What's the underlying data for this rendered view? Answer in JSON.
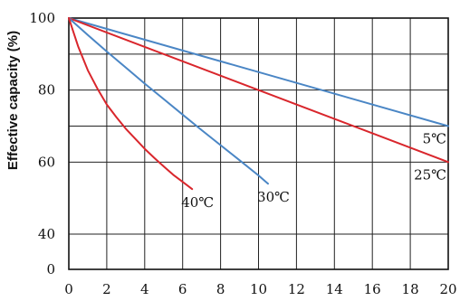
{
  "chart_data": {
    "type": "line",
    "title": "",
    "xlabel": "",
    "ylabel": "Effective capacity (%)",
    "xlim": [
      0,
      20
    ],
    "ylim": [
      0,
      100
    ],
    "x_ticks": [
      0,
      2,
      4,
      6,
      8,
      10,
      12,
      14,
      16,
      18,
      20
    ],
    "y_ticks": [
      0,
      40,
      60,
      80,
      100
    ],
    "grid": true,
    "series": [
      {
        "name": "5℃",
        "color": "#4a86c5",
        "x": [
          0,
          20
        ],
        "y": [
          100,
          70
        ]
      },
      {
        "name": "25℃",
        "color": "#d9262c",
        "x": [
          0,
          20
        ],
        "y": [
          100,
          60
        ]
      },
      {
        "name": "30℃",
        "color": "#4a86c5",
        "x": [
          0,
          1,
          2,
          3,
          4,
          5,
          6,
          7,
          8,
          9,
          10,
          10.5
        ],
        "y": [
          100,
          95.3,
          90.7,
          86.3,
          81.8,
          77.5,
          73.2,
          68.9,
          64.7,
          60.5,
          56.3,
          54
        ]
      },
      {
        "name": "40℃",
        "color": "#d9262c",
        "x": [
          0,
          0.5,
          1,
          1.5,
          2,
          2.5,
          3,
          3.5,
          4,
          4.5,
          5,
          5.5,
          6,
          6.5
        ],
        "y": [
          100,
          92,
          85.5,
          80.5,
          76,
          72.5,
          69.3,
          66.5,
          63.7,
          61.2,
          58.8,
          56.5,
          54.5,
          52.5
        ]
      }
    ]
  }
}
